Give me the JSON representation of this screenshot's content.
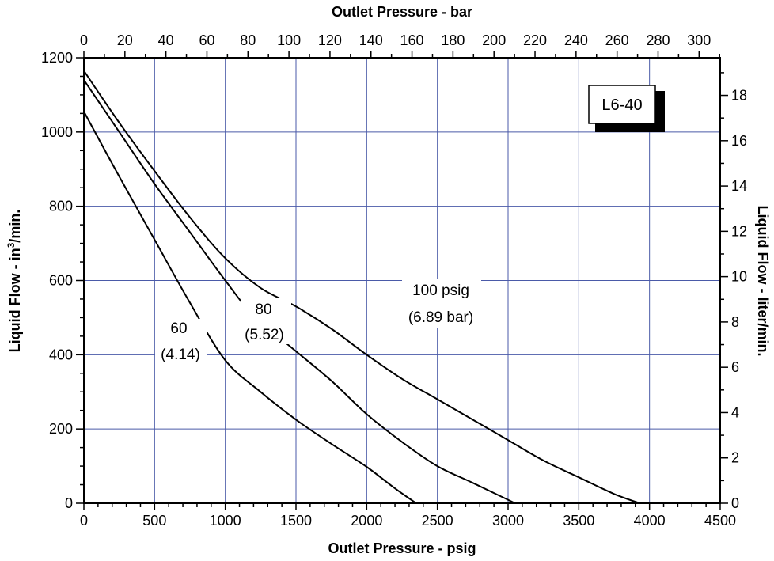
{
  "chart_data": {
    "type": "line",
    "x": {
      "label": "Outlet Pressure - psig",
      "range": [
        0,
        4500
      ],
      "ticks": [
        0,
        500,
        1000,
        1500,
        2000,
        2500,
        3000,
        3500,
        4000,
        4500
      ]
    },
    "x_top": {
      "label": "Outlet Pressure - bar",
      "range": [
        0,
        310.3
      ],
      "ticks": [
        0,
        20,
        40,
        60,
        80,
        100,
        120,
        140,
        160,
        180,
        200,
        220,
        240,
        260,
        280,
        300
      ]
    },
    "y": {
      "label_main": "Liquid Flow - in",
      "label_sup": "3",
      "label_tail": "/min.",
      "range": [
        0,
        1200
      ],
      "ticks": [
        0,
        200,
        400,
        600,
        800,
        1000,
        1200
      ]
    },
    "y_right": {
      "label": "Liquid Flow - liter/min.",
      "range": [
        0,
        19.66
      ],
      "ticks": [
        0,
        2,
        4,
        6,
        8,
        10,
        12,
        14,
        16,
        18
      ]
    },
    "grid": true,
    "badge": "L6-40",
    "series": [
      {
        "name": "60",
        "sublabel": "(4.14)",
        "points": [
          [
            0,
            1055
          ],
          [
            250,
            880
          ],
          [
            500,
            710
          ],
          [
            750,
            540
          ],
          [
            1000,
            385
          ],
          [
            1250,
            300
          ],
          [
            1500,
            225
          ],
          [
            1750,
            160
          ],
          [
            2000,
            98
          ],
          [
            2200,
            40
          ],
          [
            2350,
            0
          ]
        ]
      },
      {
        "name": "80",
        "sublabel": "(5.52)",
        "points": [
          [
            0,
            1140
          ],
          [
            250,
            1000
          ],
          [
            500,
            860
          ],
          [
            750,
            730
          ],
          [
            1000,
            600
          ],
          [
            1200,
            505
          ],
          [
            1450,
            425
          ],
          [
            1750,
            330
          ],
          [
            2000,
            240
          ],
          [
            2250,
            165
          ],
          [
            2500,
            100
          ],
          [
            2750,
            55
          ],
          [
            3050,
            0
          ]
        ]
      },
      {
        "name": "100 psig",
        "sublabel": "(6.89 bar)",
        "points": [
          [
            0,
            1165
          ],
          [
            250,
            1025
          ],
          [
            500,
            895
          ],
          [
            750,
            770
          ],
          [
            1000,
            660
          ],
          [
            1250,
            580
          ],
          [
            1500,
            530
          ],
          [
            1750,
            470
          ],
          [
            2000,
            400
          ],
          [
            2250,
            335
          ],
          [
            2500,
            280
          ],
          [
            2750,
            225
          ],
          [
            3000,
            170
          ],
          [
            3250,
            115
          ],
          [
            3500,
            70
          ],
          [
            3750,
            25
          ],
          [
            3930,
            0
          ]
        ]
      }
    ]
  }
}
